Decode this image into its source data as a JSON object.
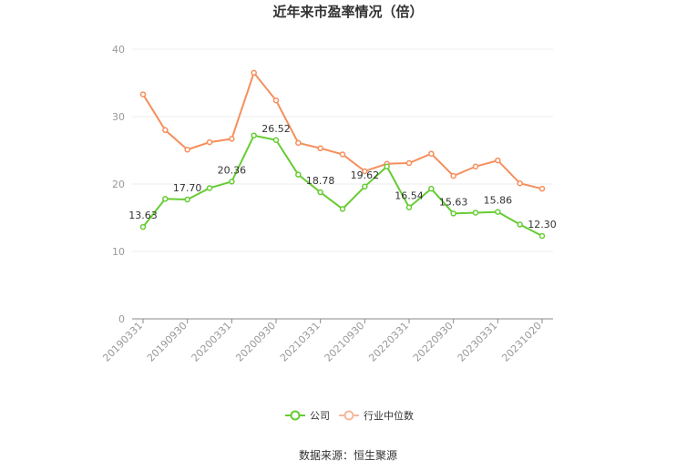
{
  "chart_data": {
    "type": "line",
    "title": "近年来市盈率情况（倍）",
    "ylim": [
      0,
      40
    ],
    "yticks": [
      0,
      10,
      20,
      30,
      40
    ],
    "grid": true,
    "legend_position": "bottom",
    "x": [
      "20190331",
      "20190630",
      "20190930",
      "20191231",
      "20200331",
      "20200630",
      "20200930",
      "20201231",
      "20210331",
      "20210630",
      "20210930",
      "20211231",
      "20220331",
      "20220630",
      "20220930",
      "20221230",
      "20230331",
      "20230630",
      "20231020"
    ],
    "x_tick_labels": [
      "20190331",
      "20190930",
      "20200331",
      "20200930",
      "20210331",
      "20210930",
      "20220331",
      "20220930",
      "20230331",
      "20231020"
    ],
    "series": [
      {
        "name": "公司",
        "color": "#66cc33",
        "values": [
          13.63,
          17.8,
          17.7,
          19.4,
          20.36,
          27.2,
          26.52,
          21.4,
          18.78,
          16.3,
          19.62,
          22.6,
          16.54,
          19.3,
          15.63,
          15.75,
          15.86,
          14.0,
          12.3
        ]
      },
      {
        "name": "行业中位数",
        "color": "#f58f5c",
        "values": [
          33.3,
          28.0,
          25.1,
          26.2,
          26.7,
          36.5,
          32.4,
          26.1,
          25.3,
          24.4,
          21.9,
          23.0,
          23.1,
          24.5,
          21.2,
          22.6,
          23.5,
          20.1,
          19.3
        ]
      }
    ],
    "data_labels": [
      {
        "index": 0,
        "text": "13.63"
      },
      {
        "index": 2,
        "text": "17.70"
      },
      {
        "index": 4,
        "text": "20.36"
      },
      {
        "index": 6,
        "text": "26.52"
      },
      {
        "index": 8,
        "text": "18.78"
      },
      {
        "index": 10,
        "text": "19.62"
      },
      {
        "index": 12,
        "text": "16.54"
      },
      {
        "index": 14,
        "text": "15.63"
      },
      {
        "index": 16,
        "text": "15.86"
      },
      {
        "index": 18,
        "text": "12.30"
      }
    ]
  },
  "source_text": "数据来源：恒生聚源"
}
